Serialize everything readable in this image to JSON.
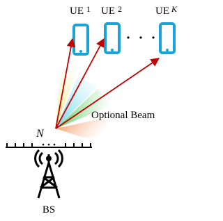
{
  "nodes": [
    {
      "label": "UE",
      "index": "1"
    },
    {
      "label": "UE",
      "index": "2"
    },
    {
      "label": "UE",
      "index": "K"
    }
  ],
  "antenna_label": "N",
  "beam_label": "Optional Beam",
  "base_station": "BS"
}
